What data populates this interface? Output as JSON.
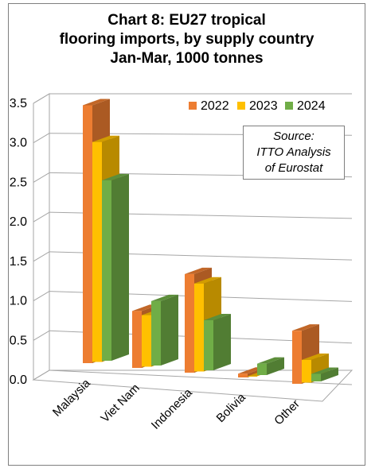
{
  "title_lines": [
    "Chart 8: EU27 tropical",
    "flooring imports, by supply country",
    "Jan-Mar, 1000 tonnes"
  ],
  "source_lines": [
    "Source:",
    "ITTO Analysis",
    "of Eurostat"
  ],
  "chart_data": {
    "type": "bar",
    "title": "Chart 8: EU27 tropical flooring imports, by supply country Jan-Mar, 1000 tonnes",
    "categories": [
      "Malaysia",
      "Viet Nam",
      "Indonesia",
      "Bolivia",
      "Other"
    ],
    "series": [
      {
        "name": "2022",
        "values": [
          3.4,
          0.75,
          1.3,
          0.05,
          0.7
        ],
        "color": "#ED7D31"
      },
      {
        "name": "2023",
        "values": [
          2.9,
          0.68,
          1.16,
          0.0,
          0.3
        ],
        "color": "#FFC000"
      },
      {
        "name": "2024",
        "values": [
          2.38,
          0.85,
          0.66,
          0.15,
          0.1
        ],
        "color": "#70AD47"
      }
    ],
    "yticks": [
      "0.0",
      "0.5",
      "1.0",
      "1.5",
      "2.0",
      "2.5",
      "3.0",
      "3.5"
    ],
    "ylim": [
      0,
      3.5
    ],
    "grid": true,
    "legend": "top-right"
  }
}
